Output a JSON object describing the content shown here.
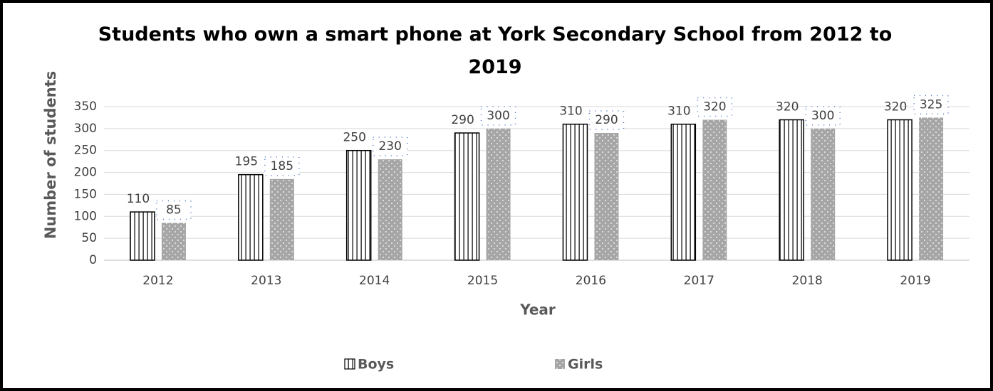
{
  "chart_data": {
    "type": "bar",
    "title": "Students who own a smart phone at York Secondary School from 2012 to 2019",
    "x_label": "Year",
    "y_label": "Number of students",
    "categories": [
      "2012",
      "2013",
      "2014",
      "2015",
      "2016",
      "2017",
      "2018",
      "2019"
    ],
    "series": [
      {
        "name": "Boys",
        "color": "#000000",
        "values": [
          110,
          195,
          250,
          290,
          310,
          310,
          320,
          320
        ]
      },
      {
        "name": "Girls",
        "color": "#a6a6a6",
        "values": [
          85,
          185,
          230,
          300,
          290,
          320,
          300,
          325
        ]
      }
    ],
    "ylim": [
      0,
      350
    ],
    "yticks": [
      0,
      50,
      100,
      150,
      200,
      250,
      300,
      350
    ],
    "grid": true,
    "legend": "bottom"
  }
}
